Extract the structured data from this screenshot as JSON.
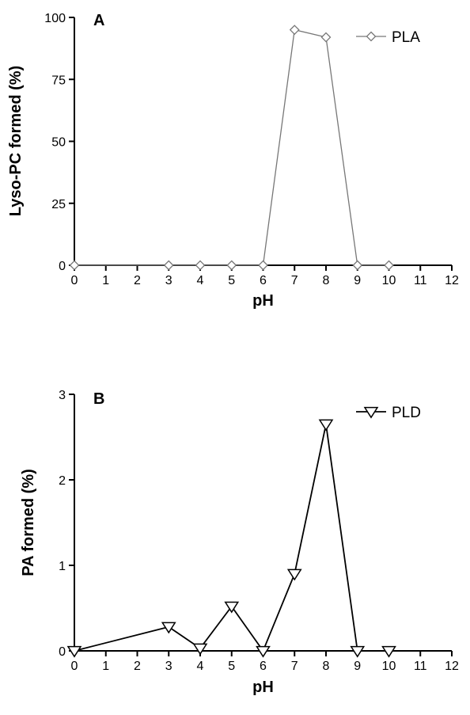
{
  "chart_data": [
    {
      "type": "line",
      "panel_label": "A",
      "xlabel": "pH",
      "ylabel": "Lyso-PC formed (%)",
      "xlim": [
        0,
        12
      ],
      "ylim": [
        0,
        100
      ],
      "xticks": [
        0,
        1,
        2,
        3,
        4,
        5,
        6,
        7,
        8,
        9,
        10,
        11,
        12
      ],
      "yticks": [
        0,
        25,
        50,
        75,
        100
      ],
      "legend_position": "top-right",
      "series": [
        {
          "name": "PLA",
          "marker": "diamond",
          "color": "#777777",
          "x": [
            0,
            3,
            4,
            5,
            6,
            7,
            8,
            9,
            10
          ],
          "y": [
            0,
            0,
            0,
            0,
            0,
            95,
            92,
            0,
            0
          ]
        }
      ]
    },
    {
      "type": "line",
      "panel_label": "B",
      "xlabel": "pH",
      "ylabel": "PA formed (%)",
      "xlim": [
        0,
        12
      ],
      "ylim": [
        0,
        3
      ],
      "xticks": [
        0,
        1,
        2,
        3,
        4,
        5,
        6,
        7,
        8,
        9,
        10,
        11,
        12
      ],
      "yticks": [
        0,
        1,
        2,
        3
      ],
      "legend_position": "top-right",
      "series": [
        {
          "name": "PLD",
          "marker": "triangle-down",
          "color": "#000000",
          "x": [
            0,
            3,
            4,
            5,
            6,
            7,
            8,
            9,
            10
          ],
          "y": [
            0,
            0.28,
            0.03,
            0.52,
            0,
            0.9,
            2.65,
            0,
            0
          ]
        }
      ]
    }
  ]
}
